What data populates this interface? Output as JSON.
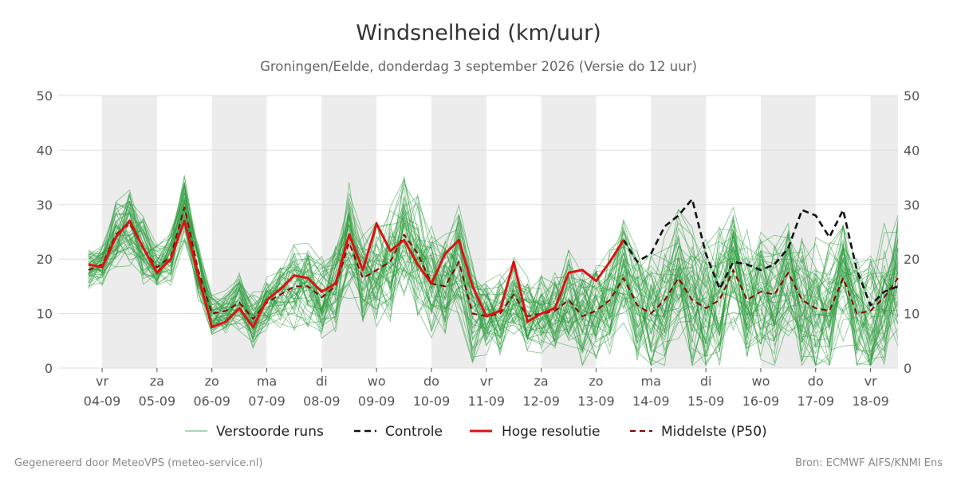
{
  "chart_data": {
    "type": "line",
    "title": "Windsnelheid (km/uur)",
    "subtitle": "Groningen/Eelde, donderdag  3 september 2026 (Versie do 12 uur)",
    "ylim": [
      0,
      50
    ],
    "yticks": [
      0,
      10,
      20,
      30,
      40,
      50
    ],
    "x_unit": "days since 04-09 00:00",
    "xlim": [
      -0.8,
      14.5
    ],
    "day_labels": [
      {
        "weekday": "vr",
        "date": "04-09"
      },
      {
        "weekday": "za",
        "date": "05-09"
      },
      {
        "weekday": "zo",
        "date": "06-09"
      },
      {
        "weekday": "ma",
        "date": "07-09"
      },
      {
        "weekday": "di",
        "date": "08-09"
      },
      {
        "weekday": "wo",
        "date": "09-09"
      },
      {
        "weekday": "do",
        "date": "10-09"
      },
      {
        "weekday": "vr",
        "date": "11-09"
      },
      {
        "weekday": "za",
        "date": "12-09"
      },
      {
        "weekday": "zo",
        "date": "13-09"
      },
      {
        "weekday": "ma",
        "date": "14-09"
      },
      {
        "weekday": "di",
        "date": "15-09"
      },
      {
        "weekday": "wo",
        "date": "16-09"
      },
      {
        "weekday": "do",
        "date": "17-09"
      },
      {
        "weekday": "vr",
        "date": "18-09"
      }
    ],
    "shaded_bands": [
      [
        0,
        1
      ],
      [
        2,
        3
      ],
      [
        4,
        5
      ],
      [
        6,
        7
      ],
      [
        8,
        9
      ],
      [
        10,
        11
      ],
      [
        12,
        13
      ],
      [
        14,
        14.5
      ]
    ],
    "grid": true,
    "legend_position": "bottom",
    "series": [
      {
        "name": "Controle",
        "color": "#111111",
        "style": "dashed",
        "x": [
          9.5,
          9.75,
          10.0,
          10.25,
          10.5,
          10.75,
          11.0,
          11.25,
          11.5,
          11.75,
          12.0,
          12.25,
          12.5,
          12.75,
          13.0,
          13.25,
          13.5,
          13.75,
          14.0,
          14.25,
          14.5
        ],
        "y": [
          23.5,
          19.5,
          21.0,
          26.0,
          28.0,
          31.0,
          21.0,
          14.5,
          19.5,
          19.0,
          18.0,
          19.0,
          22.0,
          29.0,
          28.0,
          24.0,
          29.0,
          18.0,
          11.5,
          14.0,
          15.0
        ]
      },
      {
        "name": "Hoge resolutie",
        "color": "#dd1111",
        "style": "solid",
        "x": [
          -0.25,
          0.0,
          0.25,
          0.5,
          0.75,
          1.0,
          1.25,
          1.5,
          1.75,
          2.0,
          2.25,
          2.5,
          2.75,
          3.0,
          3.25,
          3.5,
          3.75,
          4.0,
          4.25,
          4.5,
          4.75,
          5.0,
          5.25,
          5.5,
          5.75,
          6.0,
          6.25,
          6.5,
          6.75,
          7.0,
          7.25,
          7.5,
          7.75,
          8.0,
          8.25,
          8.5,
          8.75,
          9.0,
          9.25,
          9.5
        ],
        "y": [
          19.0,
          18.5,
          24.0,
          27.0,
          22.0,
          17.5,
          20.0,
          27.0,
          17.0,
          7.5,
          8.5,
          11.0,
          7.5,
          12.5,
          14.5,
          17.0,
          16.5,
          14.0,
          15.5,
          24.5,
          18.0,
          26.5,
          21.5,
          23.5,
          19.0,
          15.5,
          21.0,
          23.5,
          15.0,
          9.5,
          10.5,
          19.5,
          8.5,
          10.0,
          11.0,
          17.5,
          18.0,
          16.0,
          19.5,
          23.5
        ]
      },
      {
        "name": "Middelste (P50)",
        "color": "#8b0000",
        "style": "dashed",
        "x": [
          -0.25,
          0.0,
          0.25,
          0.5,
          0.75,
          1.0,
          1.25,
          1.5,
          1.75,
          2.0,
          2.25,
          2.5,
          2.75,
          3.0,
          3.25,
          3.5,
          3.75,
          4.0,
          4.25,
          4.5,
          4.75,
          5.0,
          5.25,
          5.5,
          5.75,
          6.0,
          6.25,
          6.5,
          6.75,
          7.0,
          7.25,
          7.5,
          7.75,
          8.0,
          8.25,
          8.5,
          8.75,
          9.0,
          9.25,
          9.5,
          9.75,
          10.0,
          10.25,
          10.5,
          10.75,
          11.0,
          11.25,
          11.5,
          11.75,
          12.0,
          12.25,
          12.5,
          12.75,
          13.0,
          13.25,
          13.5,
          13.75,
          14.0,
          14.25,
          14.5
        ],
        "y": [
          18.0,
          19.0,
          24.5,
          26.5,
          22.0,
          18.5,
          20.5,
          29.5,
          18.0,
          10.0,
          10.5,
          12.0,
          9.0,
          12.0,
          13.5,
          15.0,
          15.0,
          13.0,
          15.0,
          23.0,
          16.5,
          18.0,
          19.5,
          24.5,
          21.0,
          15.5,
          15.0,
          19.5,
          10.0,
          9.5,
          10.0,
          13.5,
          9.5,
          10.0,
          10.5,
          12.5,
          9.5,
          10.5,
          12.5,
          16.5,
          11.5,
          10.0,
          12.5,
          16.5,
          12.5,
          11.0,
          12.5,
          18.0,
          12.5,
          14.0,
          13.5,
          17.5,
          12.5,
          11.0,
          10.5,
          16.5,
          10.0,
          10.5,
          13.0,
          16.5
        ]
      }
    ],
    "ensemble": {
      "name": "Verstoorde runs",
      "color": "#2e9c3e",
      "member_count": 50,
      "x_start": -0.25,
      "x_step": 0.25,
      "median_y": [
        18.0,
        19.0,
        24.5,
        26.5,
        22.0,
        18.5,
        20.5,
        29.5,
        18.0,
        10.0,
        10.5,
        12.0,
        9.0,
        12.0,
        13.5,
        15.0,
        15.0,
        13.0,
        15.0,
        23.0,
        16.5,
        18.0,
        19.5,
        24.5,
        21.0,
        15.5,
        15.0,
        19.5,
        10.0,
        9.5,
        10.0,
        13.5,
        9.5,
        10.0,
        10.5,
        12.5,
        9.5,
        10.5,
        12.5,
        16.5,
        11.5,
        10.0,
        12.5,
        16.5,
        12.5,
        11.0,
        12.5,
        18.0,
        12.5,
        14.0,
        13.5,
        17.5,
        12.5,
        11.0,
        10.5,
        16.5,
        10.0,
        10.5,
        13.0,
        16.5
      ],
      "spread_y": [
        3,
        3,
        5,
        6,
        5,
        3,
        4,
        5,
        4,
        3,
        3,
        4,
        4,
        4,
        5,
        6,
        6,
        6,
        7,
        8,
        8,
        8,
        9,
        9,
        9,
        8,
        8,
        8,
        7,
        6,
        6,
        6,
        6,
        6,
        6,
        7,
        7,
        7,
        8,
        9,
        9,
        9,
        9,
        10,
        10,
        10,
        10,
        10,
        10,
        10,
        10,
        10,
        10,
        10,
        10,
        10,
        10,
        10,
        10,
        10
      ]
    }
  },
  "legend": {
    "items": [
      {
        "label": "Verstoorde runs"
      },
      {
        "label": "Controle"
      },
      {
        "label": "Hoge resolutie"
      },
      {
        "label": "Middelste (P50)"
      }
    ]
  },
  "footer": {
    "left": "Gegenereerd door MeteoVPS (meteo-service.nl)",
    "right": "Bron: ECMWF AIFS/KNMI Ens"
  }
}
